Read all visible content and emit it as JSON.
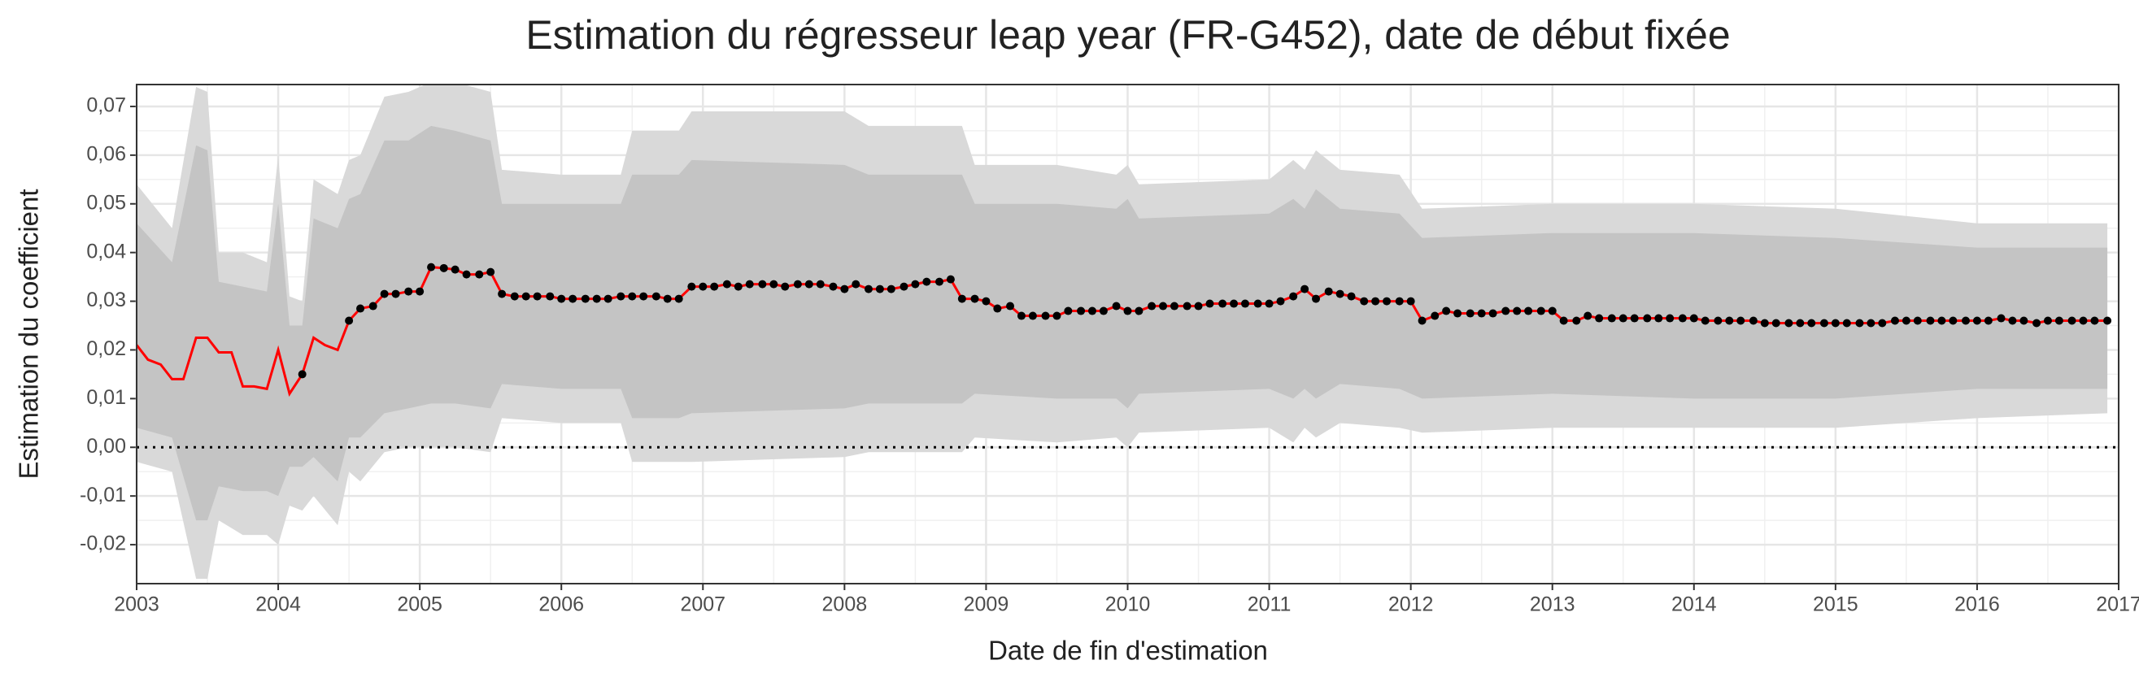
{
  "chart_data": {
    "type": "line",
    "title": "Estimation du régresseur leap year (FR-G452), date de début fixée",
    "x_label": "Date de fin d'estimation",
    "y_label": "Estimation du coefficient",
    "xlim": [
      2003,
      2017
    ],
    "xticks": [
      2003,
      2004,
      2005,
      2006,
      2007,
      2008,
      2009,
      2010,
      2011,
      2012,
      2013,
      2014,
      2015,
      2016,
      2017
    ],
    "ylim": [
      -0.028,
      0.0745
    ],
    "yticks": [
      {
        "value": -0.02,
        "label": "-0,02"
      },
      {
        "value": -0.01,
        "label": "-0,01"
      },
      {
        "value": 0,
        "label": "0,00"
      },
      {
        "value": 0.01,
        "label": "0,01"
      },
      {
        "value": 0.02,
        "label": "0,02"
      },
      {
        "value": 0.03,
        "label": "0,03"
      },
      {
        "value": 0.04,
        "label": "0,04"
      },
      {
        "value": 0.05,
        "label": "0,05"
      },
      {
        "value": 0.06,
        "label": "0,06"
      },
      {
        "value": 0.07,
        "label": "0,07"
      }
    ],
    "grid": true,
    "hline": 0,
    "x": [
      2003.0,
      2003.08,
      2003.17,
      2003.25,
      2003.33,
      2003.42,
      2003.5,
      2003.58,
      2003.67,
      2003.75,
      2003.83,
      2003.92,
      2004.0,
      2004.08,
      2004.17,
      2004.25,
      2004.33,
      2004.42,
      2004.5,
      2004.58,
      2004.67,
      2004.75,
      2004.83,
      2004.92,
      2005.0,
      2005.08,
      2005.17,
      2005.25,
      2005.33,
      2005.42,
      2005.5,
      2005.58,
      2005.67,
      2005.75,
      2005.83,
      2005.92,
      2006.0,
      2006.08,
      2006.17,
      2006.25,
      2006.33,
      2006.42,
      2006.5,
      2006.58,
      2006.67,
      2006.75,
      2006.83,
      2006.92,
      2007.0,
      2007.08,
      2007.17,
      2007.25,
      2007.33,
      2007.42,
      2007.5,
      2007.58,
      2007.67,
      2007.75,
      2007.83,
      2007.92,
      2008.0,
      2008.08,
      2008.17,
      2008.25,
      2008.33,
      2008.42,
      2008.5,
      2008.58,
      2008.67,
      2008.75,
      2008.83,
      2008.92,
      2009.0,
      2009.08,
      2009.17,
      2009.25,
      2009.33,
      2009.42,
      2009.5,
      2009.58,
      2009.67,
      2009.75,
      2009.83,
      2009.92,
      2010.0,
      2010.08,
      2010.17,
      2010.25,
      2010.33,
      2010.42,
      2010.5,
      2010.58,
      2010.67,
      2010.75,
      2010.83,
      2010.92,
      2011.0,
      2011.08,
      2011.17,
      2011.25,
      2011.33,
      2011.42,
      2011.5,
      2011.58,
      2011.67,
      2011.75,
      2011.83,
      2011.92,
      2012.0,
      2012.08,
      2012.17,
      2012.25,
      2012.33,
      2012.42,
      2012.5,
      2012.58,
      2012.67,
      2012.75,
      2012.83,
      2012.92,
      2013.0,
      2013.08,
      2013.17,
      2013.25,
      2013.33,
      2013.42,
      2013.5,
      2013.58,
      2013.67,
      2013.75,
      2013.83,
      2013.92,
      2014.0,
      2014.08,
      2014.17,
      2014.25,
      2014.33,
      2014.42,
      2014.5,
      2014.58,
      2014.67,
      2014.75,
      2014.83,
      2014.92,
      2015.0,
      2015.08,
      2015.17,
      2015.25,
      2015.33,
      2015.42,
      2015.5,
      2015.58,
      2015.67,
      2015.75,
      2015.83,
      2015.92,
      2016.0,
      2016.08,
      2016.17,
      2016.25,
      2016.33,
      2016.42,
      2016.5,
      2016.58,
      2016.67,
      2016.75,
      2016.83,
      2016.92
    ],
    "series": [
      {
        "color": "#ff0000",
        "values": [
          0.021,
          0.018,
          0.017,
          0.014,
          0.014,
          0.0225,
          0.0225,
          0.0195,
          0.0195,
          0.0125,
          0.0125,
          0.012,
          0.02,
          0.011,
          0.015,
          0.0225,
          0.021,
          0.02,
          0.026,
          0.0285,
          0.029,
          0.0315,
          0.0315,
          0.032,
          0.032,
          0.037,
          0.0368,
          0.0365,
          0.0355,
          0.0355,
          0.036,
          0.0315,
          0.031,
          0.031,
          0.031,
          0.031,
          0.0305,
          0.0305,
          0.0305,
          0.0305,
          0.0305,
          0.031,
          0.031,
          0.031,
          0.031,
          0.0305,
          0.0305,
          0.033,
          0.033,
          0.033,
          0.0335,
          0.033,
          0.0335,
          0.0335,
          0.0335,
          0.033,
          0.0335,
          0.0335,
          0.0335,
          0.033,
          0.0325,
          0.0335,
          0.0325,
          0.0325,
          0.0325,
          0.033,
          0.0335,
          0.034,
          0.034,
          0.0345,
          0.0305,
          0.0305,
          0.03,
          0.0285,
          0.029,
          0.027,
          0.027,
          0.027,
          0.027,
          0.028,
          0.028,
          0.028,
          0.028,
          0.029,
          0.028,
          0.028,
          0.029,
          0.029,
          0.029,
          0.029,
          0.029,
          0.0295,
          0.0295,
          0.0295,
          0.0295,
          0.0295,
          0.0295,
          0.03,
          0.031,
          0.0325,
          0.0305,
          0.032,
          0.0315,
          0.031,
          0.03,
          0.03,
          0.03,
          0.03,
          0.03,
          0.026,
          0.027,
          0.028,
          0.0275,
          0.0275,
          0.0275,
          0.0275,
          0.028,
          0.028,
          0.028,
          0.028,
          0.028,
          0.026,
          0.026,
          0.027,
          0.0265,
          0.0265,
          0.0265,
          0.0265,
          0.0265,
          0.0265,
          0.0265,
          0.0265,
          0.0265,
          0.026,
          0.026,
          0.026,
          0.026,
          0.026,
          0.0255,
          0.0255,
          0.0255,
          0.0255,
          0.0255,
          0.0255,
          0.0255,
          0.0255,
          0.0255,
          0.0255,
          0.0255,
          0.026,
          0.026,
          0.026,
          0.026,
          0.026,
          0.026,
          0.026,
          0.026,
          0.026,
          0.0265,
          0.026,
          0.026,
          0.0255,
          0.026,
          0.026,
          0.026,
          0.026,
          0.026,
          0.026
        ]
      },
      {
        "color": "#000000",
        "values": [
          null,
          null,
          null,
          null,
          null,
          null,
          null,
          null,
          null,
          null,
          null,
          null,
          null,
          null,
          0.015,
          null,
          null,
          null,
          0.026,
          0.0285,
          0.029,
          0.0315,
          0.0315,
          0.032,
          0.032,
          0.037,
          0.0368,
          0.0365,
          0.0355,
          0.0355,
          0.036,
          0.0315,
          0.031,
          0.031,
          0.031,
          0.031,
          0.0305,
          0.0305,
          0.0305,
          0.0305,
          0.0305,
          0.031,
          0.031,
          0.031,
          0.031,
          0.0305,
          0.0305,
          0.033,
          0.033,
          0.033,
          0.0335,
          0.033,
          0.0335,
          0.0335,
          0.0335,
          0.033,
          0.0335,
          0.0335,
          0.0335,
          0.033,
          0.0325,
          0.0335,
          0.0325,
          0.0325,
          0.0325,
          0.033,
          0.0335,
          0.034,
          0.034,
          0.0345,
          0.0305,
          0.0305,
          0.03,
          0.0285,
          0.029,
          0.027,
          0.027,
          0.027,
          0.027,
          0.028,
          0.028,
          0.028,
          0.028,
          0.029,
          0.028,
          0.028,
          0.029,
          0.029,
          0.029,
          0.029,
          0.029,
          0.0295,
          0.0295,
          0.0295,
          0.0295,
          0.0295,
          0.0295,
          0.03,
          0.031,
          0.0325,
          0.0305,
          0.032,
          0.0315,
          0.031,
          0.03,
          0.03,
          0.03,
          0.03,
          0.03,
          0.026,
          0.027,
          0.028,
          0.0275,
          0.0275,
          0.0275,
          0.0275,
          0.028,
          0.028,
          0.028,
          0.028,
          0.028,
          0.026,
          0.026,
          0.027,
          0.0265,
          0.0265,
          0.0265,
          0.0265,
          0.0265,
          0.0265,
          0.0265,
          0.0265,
          0.0265,
          0.026,
          0.026,
          0.026,
          0.026,
          0.026,
          0.0255,
          0.0255,
          0.0255,
          0.0255,
          0.0255,
          0.0255,
          0.0255,
          0.0255,
          0.0255,
          0.0255,
          0.0255,
          0.026,
          0.026,
          0.026,
          0.026,
          0.026,
          0.026,
          0.026,
          0.026,
          0.026,
          0.0265,
          0.026,
          0.026,
          0.0255,
          0.026,
          0.026,
          0.026,
          0.026,
          0.026,
          0.026
        ]
      }
    ],
    "bands": {
      "x": [
        2003,
        2003.25,
        2003.42,
        2003.5,
        2003.58,
        2003.75,
        2003.92,
        2004,
        2004.08,
        2004.17,
        2004.25,
        2004.42,
        2004.5,
        2004.58,
        2004.75,
        2004.92,
        2005.08,
        2005.25,
        2005.5,
        2005.58,
        2006,
        2006.42,
        2006.5,
        2006.83,
        2006.92,
        2008,
        2008.17,
        2008.83,
        2008.92,
        2009.5,
        2009.92,
        2010,
        2010.08,
        2011,
        2011.17,
        2011.25,
        2011.33,
        2011.5,
        2011.92,
        2012.08,
        2013,
        2014,
        2015,
        2016,
        2016.92
      ],
      "ranges": [
        {
          "color": "#d9d9d9",
          "upper": [
            0.054,
            0.045,
            0.074,
            0.073,
            0.04,
            0.04,
            0.038,
            0.06,
            0.031,
            0.03,
            0.055,
            0.052,
            0.059,
            0.06,
            0.072,
            0.073,
            0.075,
            0.075,
            0.073,
            0.057,
            0.056,
            0.056,
            0.065,
            0.065,
            0.069,
            0.069,
            0.066,
            0.066,
            0.058,
            0.058,
            0.056,
            0.058,
            0.054,
            0.055,
            0.059,
            0.057,
            0.061,
            0.057,
            0.056,
            0.049,
            0.05,
            0.05,
            0.049,
            0.046,
            0.046
          ],
          "lower": [
            -0.003,
            -0.005,
            -0.027,
            -0.027,
            -0.015,
            -0.018,
            -0.018,
            -0.02,
            -0.012,
            -0.013,
            -0.01,
            -0.016,
            -0.005,
            -0.007,
            -0.001,
            0,
            0,
            0,
            -0.001,
            0.006,
            0.005,
            0.005,
            -0.003,
            -0.003,
            -0.003,
            -0.002,
            -0.001,
            -0.001,
            0.002,
            0.001,
            0.002,
            0,
            0.003,
            0.004,
            0.001,
            0.004,
            0.002,
            0.005,
            0.004,
            0.003,
            0.004,
            0.004,
            0.004,
            0.006,
            0.007
          ]
        },
        {
          "color": "#c4c4c4",
          "upper": [
            0.046,
            0.038,
            0.062,
            0.061,
            0.034,
            0.033,
            0.032,
            0.05,
            0.025,
            0.025,
            0.047,
            0.045,
            0.051,
            0.052,
            0.063,
            0.063,
            0.066,
            0.065,
            0.063,
            0.05,
            0.05,
            0.05,
            0.056,
            0.056,
            0.059,
            0.058,
            0.056,
            0.056,
            0.05,
            0.05,
            0.049,
            0.051,
            0.047,
            0.048,
            0.051,
            0.049,
            0.053,
            0.049,
            0.048,
            0.043,
            0.044,
            0.044,
            0.043,
            0.041,
            0.041
          ],
          "lower": [
            0.004,
            0.002,
            -0.015,
            -0.015,
            -0.008,
            -0.009,
            -0.009,
            -0.01,
            -0.004,
            -0.004,
            -0.002,
            -0.007,
            0.002,
            0.002,
            0.007,
            0.008,
            0.009,
            0.009,
            0.008,
            0.013,
            0.012,
            0.012,
            0.006,
            0.006,
            0.007,
            0.008,
            0.009,
            0.009,
            0.011,
            0.01,
            0.01,
            0.008,
            0.011,
            0.012,
            0.01,
            0.012,
            0.01,
            0.013,
            0.012,
            0.01,
            0.011,
            0.01,
            0.01,
            0.012,
            0.012
          ]
        }
      ]
    }
  }
}
